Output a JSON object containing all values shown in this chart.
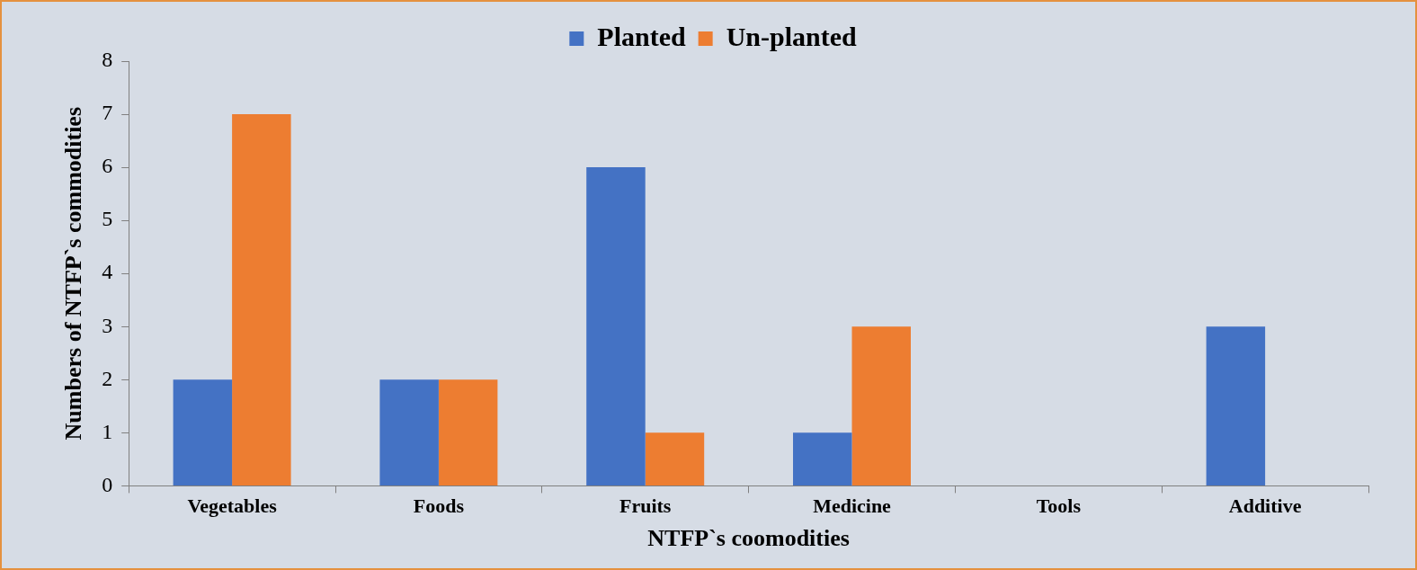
{
  "chart_data": {
    "type": "bar",
    "xlabel": "NTFP`s coomodities",
    "ylabel": "Numbers of NTFP`s commodities",
    "categories": [
      "Vegetables",
      "Foods",
      "Fruits",
      "Medicine",
      "Tools",
      "Additive"
    ],
    "series": [
      {
        "name": "Planted",
        "color": "#4472c4",
        "values": [
          2,
          2,
          6,
          1,
          0,
          3
        ]
      },
      {
        "name": "Un-planted",
        "color": "#ed7d31",
        "values": [
          7,
          2,
          1,
          3,
          0,
          0
        ]
      }
    ],
    "ylim": [
      0,
      8
    ],
    "yticks": [
      0,
      1,
      2,
      3,
      4,
      5,
      6,
      7,
      8
    ],
    "grid": false,
    "legend": "top"
  }
}
